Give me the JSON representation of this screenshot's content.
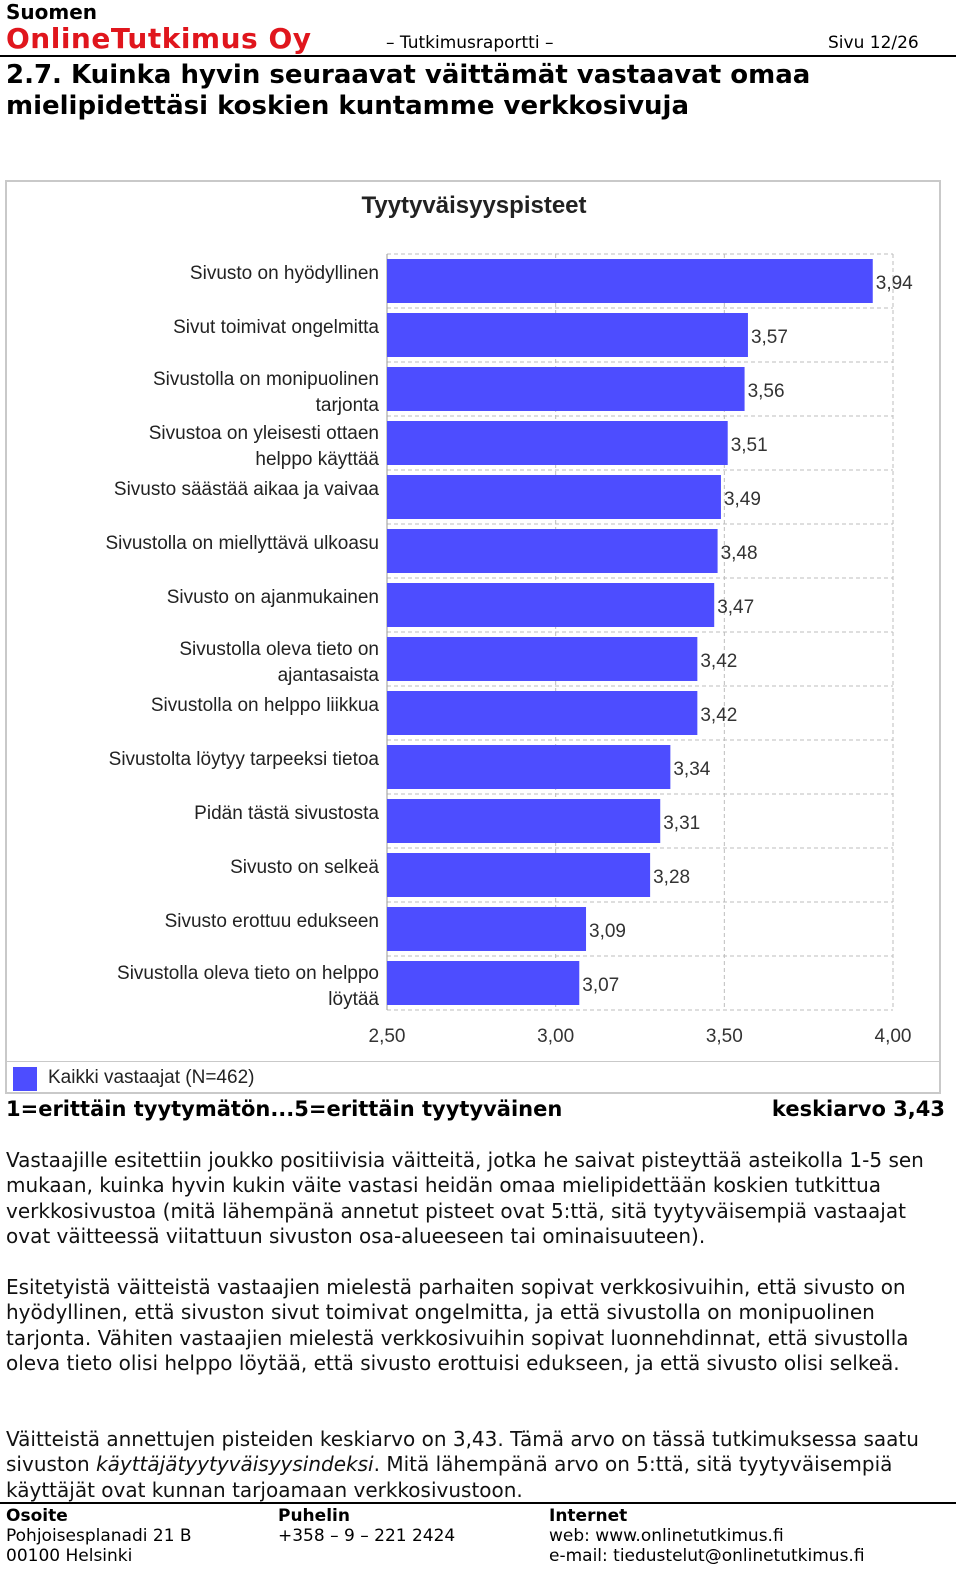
{
  "header": {
    "company_top": "Suomen",
    "company_main": "OnlineTutkimus Oy",
    "report_label": "– Tutkimusraportti –",
    "page_label": "Sivu 12/26"
  },
  "section_title": "2.7. Kuinka hyvin seuraavat väittämät vastaavat omaa mielipidettäsi koskien kuntamme verkkosivuja",
  "chart_data": {
    "type": "bar",
    "orientation": "horizontal",
    "title": "Tyytyväisyyspisteet",
    "categories": [
      "Sivusto on hyödyllinen",
      "Sivut toimivat ongelmitta",
      "Sivustolla on monipuolinen tarjonta",
      "Sivustoa on yleisesti ottaen helppo käyttää",
      "Sivusto säästää aikaa ja vaivaa",
      "Sivustolla on miellyttävä ulkoasu",
      "Sivusto on ajanmukainen",
      "Sivustolla oleva tieto on ajantasaista",
      "Sivustolla on helppo liikkua",
      "Sivustolta löytyy tarpeeksi tietoa",
      "Pidän tästä sivustosta",
      "Sivusto on selkeä",
      "Sivusto erottuu edukseen",
      "Sivustolla oleva tieto on helppo löytää"
    ],
    "series": [
      {
        "name": "Kaikki vastaajat (N=462)",
        "values": [
          3.94,
          3.57,
          3.56,
          3.51,
          3.49,
          3.48,
          3.47,
          3.42,
          3.42,
          3.34,
          3.31,
          3.28,
          3.09,
          3.07
        ],
        "value_labels": [
          "3,94",
          "3,57",
          "3,56",
          "3,51",
          "3,49",
          "3,48",
          "3,47",
          "3,42",
          "3,42",
          "3,34",
          "3,31",
          "3,28",
          "3,09",
          "3,07"
        ]
      }
    ],
    "xlim": [
      2.5,
      4.0
    ],
    "ticks": [
      2.5,
      3.0,
      3.5,
      4.0
    ],
    "tick_labels": [
      "2,50",
      "3,00",
      "3,50",
      "4,00"
    ],
    "grid": "dashed vertical and horizontal",
    "legend": "bottom-left",
    "bar_color": "#4d4dff"
  },
  "scale_text": "1=erittäin tyytymätön...5=erittäin tyytyväinen",
  "mean_text": "keskiarvo 3,43",
  "paragraphs": {
    "p1": "Vastaajille esitettiin joukko positiivisia väitteitä, jotka he saivat pisteyttää asteikolla 1-5 sen mukaan, kuinka hyvin kukin väite vastasi heidän omaa mielipidettään koskien tutkittua verkkosivustoa (mitä lähempänä annetut pisteet ovat 5:ttä, sitä tyytyväisempiä vastaajat ovat väitteessä viitattuun sivuston osa-alueeseen tai ominaisuuteen).",
    "p2": "Esitetyistä väitteistä vastaajien mielestä parhaiten sopivat verkkosivuihin, että sivusto on hyödyllinen, että sivuston sivut toimivat ongelmitta, ja että sivustolla on monipuolinen tarjonta. Vähiten vastaajien mielestä verkkosivuihin sopivat luonnehdinnat, että sivustolla oleva tieto olisi helppo löytää, että sivusto erottuisi edukseen, ja että sivusto olisi selkeä.",
    "p3_a": "Väitteistä annettujen pisteiden keskiarvo on 3,43. Tämä arvo on tässä tutkimuksessa saatu sivuston ",
    "p3_em": "käyttäjätyytyväisyysindeksi",
    "p3_b": ". Mitä lähempänä arvo on 5:ttä, sitä tyytyväisempiä käyttäjät ovat kunnan tarjoamaan verkkosivustoon."
  },
  "footer": {
    "address_head": "Osoite",
    "address_line1": "Pohjoisesplanadi 21 B",
    "address_line2": "00100 Helsinki",
    "phone_head": "Puhelin",
    "phone": "+358 – 9 – 221 2424",
    "internet_head": "Internet",
    "web": "web: www.onlinetutkimus.fi",
    "email": "e-mail: tiedustelut@onlinetutkimus.fi"
  }
}
